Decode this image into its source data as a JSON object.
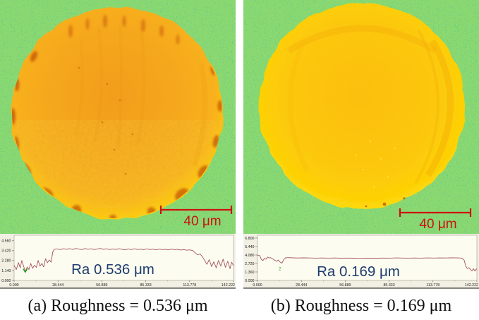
{
  "figure": {
    "panels": [
      {
        "scale_bar_label": "40 μm",
        "caption": "(a) Roughness = 0.536 μm"
      },
      {
        "scale_bar_label": "40 μm",
        "caption": "(b) Roughness = 0.169 μm"
      }
    ],
    "colors": {
      "background_noise_green": "#9adb17",
      "disc_a_orange": "#f5a71e",
      "disc_b_yellow": "#fcc708",
      "scale_bar_red": "#cd1111",
      "profile_line": "#a2565e",
      "annotation_blue": "#1d3c6e"
    }
  },
  "chart_data": [
    {
      "type": "line",
      "annotation": "Ra 0.536 μm",
      "annotation_xy": [
        160,
        57
      ],
      "x_ticks": [
        "0.000",
        "28.444",
        "56.889",
        "85.333",
        "113.778",
        "142.222"
      ],
      "y_ticks": [
        "0.000",
        "1.140",
        "2.280",
        "3.420",
        "4.560"
      ],
      "xlim": [
        0,
        142.222
      ],
      "ylim": [
        0,
        5.2
      ],
      "marker": {
        "shape": "v",
        "x": 7.2,
        "y": 1.02,
        "color": "#12a312"
      },
      "series": [
        {
          "name": "height-profile-a",
          "points": [
            [
              0,
              1.75
            ],
            [
              1.4,
              1.25
            ],
            [
              2.8,
              2.05
            ],
            [
              4,
              1.45
            ],
            [
              5,
              2.3
            ],
            [
              6.2,
              1.6
            ],
            [
              7.2,
              1.02
            ],
            [
              8.5,
              1.55
            ],
            [
              9.6,
              1.25
            ],
            [
              10.8,
              1.95
            ],
            [
              12,
              1.4
            ],
            [
              13.2,
              1.75
            ],
            [
              14.4,
              1.5
            ],
            [
              15.6,
              2.3
            ],
            [
              16.8,
              1.65
            ],
            [
              18,
              1.95
            ],
            [
              19.2,
              1.55
            ],
            [
              20.4,
              2.5
            ],
            [
              21.6,
              2.05
            ],
            [
              22.8,
              2.35
            ],
            [
              24,
              2.1
            ],
            [
              25,
              3.25
            ],
            [
              26,
              3.58
            ],
            [
              28,
              3.62
            ],
            [
              30,
              3.55
            ],
            [
              32,
              3.65
            ],
            [
              34,
              3.58
            ],
            [
              36,
              3.66
            ],
            [
              38,
              3.56
            ],
            [
              40,
              3.68
            ],
            [
              42,
              3.6
            ],
            [
              44,
              3.55
            ],
            [
              46,
              3.67
            ],
            [
              48,
              3.58
            ],
            [
              50,
              3.64
            ],
            [
              52,
              3.55
            ],
            [
              54,
              3.62
            ],
            [
              56,
              3.68
            ],
            [
              58,
              3.57
            ],
            [
              60,
              3.64
            ],
            [
              62,
              3.55
            ],
            [
              64,
              3.62
            ],
            [
              66,
              3.56
            ],
            [
              68,
              3.65
            ],
            [
              70,
              3.58
            ],
            [
              72,
              3.52
            ],
            [
              74,
              3.62
            ],
            [
              76,
              3.55
            ],
            [
              78,
              3.64
            ],
            [
              80,
              3.56
            ],
            [
              82,
              3.6
            ],
            [
              84,
              3.54
            ],
            [
              86,
              3.63
            ],
            [
              88,
              3.55
            ],
            [
              90,
              3.6
            ],
            [
              92,
              3.53
            ],
            [
              94,
              3.6
            ],
            [
              96,
              3.55
            ],
            [
              98,
              3.58
            ],
            [
              100,
              3.52
            ],
            [
              102,
              3.6
            ],
            [
              104,
              3.54
            ],
            [
              106,
              3.58
            ],
            [
              108,
              3.5
            ],
            [
              110,
              3.55
            ],
            [
              112,
              3.48
            ],
            [
              114,
              3.52
            ],
            [
              116,
              3.42
            ],
            [
              117.5,
              3.15
            ],
            [
              119,
              2.95
            ],
            [
              120.5,
              3.05
            ],
            [
              122,
              2.75
            ],
            [
              123.5,
              2.3
            ],
            [
              125,
              1.85
            ],
            [
              126.5,
              2.4
            ],
            [
              128,
              1.6
            ],
            [
              129.5,
              2.15
            ],
            [
              131,
              1.45
            ],
            [
              132.5,
              2.3
            ],
            [
              134,
              1.65
            ],
            [
              135.5,
              2.45
            ],
            [
              137,
              1.5
            ],
            [
              138.5,
              2.2
            ],
            [
              140,
              1.35
            ],
            [
              141,
              2.1
            ],
            [
              142.2,
              1.7
            ]
          ]
        }
      ]
    },
    {
      "type": "line",
      "annotation": "Ra 0.169 μm",
      "annotation_xy": [
        163,
        60
      ],
      "x_ticks": [
        "0.000",
        "28.444",
        "56.889",
        "85.333",
        "113.778",
        "142.222"
      ],
      "y_ticks": [
        "0.000",
        "1.360",
        "2.720",
        "4.080",
        "5.440",
        "6.800"
      ],
      "xlim": [
        0,
        142.222
      ],
      "ylim": [
        0,
        7.25
      ],
      "marker": {
        "shape": "text",
        "label": "2",
        "x": 14.5,
        "y": 2.1,
        "color": "#12a312"
      },
      "series": [
        {
          "name": "height-profile-b",
          "points": [
            [
              0,
              4.05
            ],
            [
              1.5,
              3.98
            ],
            [
              2.5,
              3.35
            ],
            [
              3.5,
              3.18
            ],
            [
              4.5,
              3.55
            ],
            [
              5.5,
              3.4
            ],
            [
              6.5,
              3.75
            ],
            [
              7.5,
              3.6
            ],
            [
              8.5,
              3.66
            ],
            [
              9.5,
              3.5
            ],
            [
              10.5,
              3.35
            ],
            [
              11.5,
              3.2
            ],
            [
              12.5,
              3.05
            ],
            [
              13.5,
              3.28
            ],
            [
              14.5,
              2.98
            ],
            [
              15.8,
              2.78
            ],
            [
              17,
              3.35
            ],
            [
              18.2,
              3.62
            ],
            [
              20,
              3.66
            ],
            [
              23,
              3.63
            ],
            [
              26,
              3.6
            ],
            [
              30,
              3.62
            ],
            [
              34,
              3.6
            ],
            [
              38,
              3.58
            ],
            [
              42,
              3.6
            ],
            [
              46,
              3.58
            ],
            [
              50,
              3.6
            ],
            [
              54,
              3.57
            ],
            [
              58,
              3.59
            ],
            [
              62,
              3.57
            ],
            [
              66,
              3.58
            ],
            [
              70,
              3.57
            ],
            [
              74,
              3.58
            ],
            [
              78,
              3.57
            ],
            [
              82,
              3.59
            ],
            [
              86,
              3.58
            ],
            [
              90,
              3.61
            ],
            [
              94,
              3.59
            ],
            [
              98,
              3.58
            ],
            [
              102,
              3.6
            ],
            [
              106,
              3.58
            ],
            [
              110,
              3.61
            ],
            [
              114,
              3.59
            ],
            [
              118,
              3.61
            ],
            [
              122,
              3.6
            ],
            [
              126,
              3.63
            ],
            [
              130,
              3.61
            ],
            [
              132.5,
              3.58
            ],
            [
              134,
              3.25
            ],
            [
              135,
              2.3
            ],
            [
              136,
              1.92
            ],
            [
              137,
              2.05
            ],
            [
              138,
              1.78
            ],
            [
              139,
              1.52
            ],
            [
              140,
              1.88
            ],
            [
              141,
              1.5
            ],
            [
              141.8,
              1.85
            ],
            [
              142.2,
              1.75
            ]
          ]
        }
      ]
    }
  ]
}
